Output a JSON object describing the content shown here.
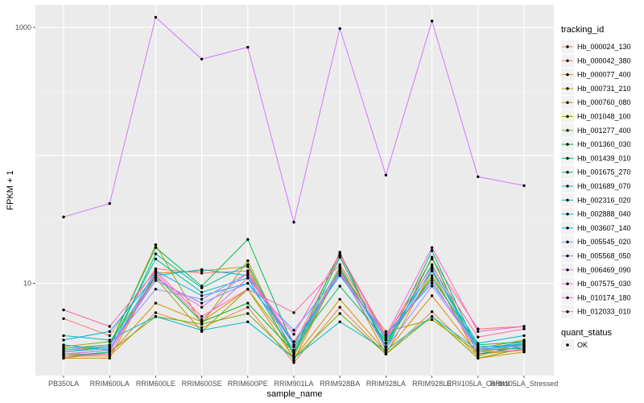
{
  "chart_data": {
    "type": "line",
    "title": "",
    "xlabel": "sample_name",
    "ylabel": "FPKM + 1",
    "y_scale": "log10",
    "ylim": [
      1.9,
      1500
    ],
    "y_ticks": [
      {
        "value": 10,
        "label": "10"
      },
      {
        "value": 1000,
        "label": "1000"
      }
    ],
    "grid": true,
    "legend_position": "right",
    "categories": [
      "PB350LA",
      "RRIM600LA",
      "RRIM600LE",
      "RRIM600SE",
      "RRIM600PE",
      "RRIM901LA",
      "RRIM928BA",
      "RRIM928LA",
      "RRIM928LE",
      "RRII105LA_Control",
      "RRII105LA_Stressed"
    ],
    "legend": {
      "title": "tracking_id",
      "quant_status_title": "quant_status",
      "quant_status_label": "OK"
    },
    "series": [
      {
        "name": "Hb_000024_130",
        "color": "#F8766D",
        "values": [
          5.3,
          3.9,
          13.0,
          12.0,
          12.5,
          3.3,
          16.5,
          3.8,
          15.5,
          4.4,
          4.6
        ]
      },
      {
        "name": "Hb_000042_380",
        "color": "#EE8044",
        "values": [
          2.7,
          2.7,
          5.9,
          4.5,
          6.5,
          2.4,
          6.5,
          2.8,
          6.0,
          2.7,
          3.4
        ]
      },
      {
        "name": "Hb_000077_400",
        "color": "#E08B00",
        "values": [
          2.8,
          2.8,
          7.0,
          5.0,
          9.0,
          2.6,
          7.5,
          2.9,
          8.0,
          2.8,
          3.0
        ]
      },
      {
        "name": "Hb_000731_210",
        "color": "#CF9400",
        "values": [
          2.6,
          2.6,
          12.0,
          12.5,
          13.5,
          2.5,
          13.0,
          2.8,
          12.5,
          2.6,
          2.9
        ]
      },
      {
        "name": "Hb_000760_080",
        "color": "#B79F00",
        "values": [
          3.0,
          3.2,
          20.0,
          4.8,
          15.0,
          2.7,
          12.5,
          4.2,
          5.2,
          2.9,
          3.3
        ]
      },
      {
        "name": "Hb_001048_100",
        "color": "#9CA700",
        "values": [
          3.2,
          3.5,
          11.0,
          4.2,
          9.0,
          3.0,
          13.5,
          3.4,
          11.5,
          3.1,
          3.6
        ]
      },
      {
        "name": "Hb_001277_400",
        "color": "#72B000",
        "values": [
          2.6,
          2.9,
          5.5,
          4.8,
          5.8,
          2.6,
          5.8,
          2.8,
          5.5,
          2.6,
          3.1
        ]
      },
      {
        "name": "Hb_001360_030",
        "color": "#00B81F",
        "values": [
          2.8,
          3.0,
          11.5,
          5.0,
          7.0,
          2.9,
          17.5,
          3.0,
          16.0,
          2.8,
          3.2
        ]
      },
      {
        "name": "Hb_001439_010",
        "color": "#00BC59",
        "values": [
          3.1,
          3.3,
          19.0,
          9.5,
          22.0,
          3.2,
          9.5,
          3.6,
          11.0,
          3.3,
          3.5
        ]
      },
      {
        "name": "Hb_001675_270",
        "color": "#00BE84",
        "values": [
          2.7,
          2.9,
          17.0,
          9.2,
          14.0,
          2.8,
          16.0,
          3.2,
          18.0,
          3.0,
          3.4
        ]
      },
      {
        "name": "Hb_001689_070",
        "color": "#00BFA7",
        "values": [
          2.9,
          3.2,
          15.5,
          8.5,
          11.0,
          2.8,
          13.0,
          3.4,
          14.0,
          3.0,
          3.1
        ]
      },
      {
        "name": "Hb_002316_020",
        "color": "#00BCC6",
        "values": [
          3.9,
          3.6,
          5.5,
          4.3,
          5.0,
          2.6,
          5.0,
          3.0,
          5.5,
          3.0,
          3.5
        ]
      },
      {
        "name": "Hb_002888_040",
        "color": "#00B6E0",
        "values": [
          3.6,
          4.2,
          11.5,
          12.8,
          11.5,
          3.3,
          12.0,
          3.7,
          12.5,
          3.4,
          3.9
        ]
      },
      {
        "name": "Hb_003607_140",
        "color": "#00ACF5",
        "values": [
          3.3,
          3.0,
          12.5,
          8.0,
          10.0,
          3.5,
          11.5,
          4.0,
          10.0,
          3.2,
          3.3
        ]
      },
      {
        "name": "Hb_005545_020",
        "color": "#5E9FFF",
        "values": [
          2.9,
          3.1,
          10.5,
          7.0,
          10.0,
          4.3,
          12.0,
          3.2,
          13.0,
          3.0,
          3.3
        ]
      },
      {
        "name": "Hb_005568_050",
        "color": "#A28DFF",
        "values": [
          3.0,
          3.3,
          9.0,
          7.5,
          12.0,
          3.0,
          12.5,
          3.1,
          9.5,
          3.1,
          3.2
        ]
      },
      {
        "name": "Hb_006469_090",
        "color": "#CF78FF",
        "values": [
          33.0,
          42.0,
          1200.0,
          565.0,
          700.0,
          30.0,
          980.0,
          70.0,
          1120.0,
          68.0,
          58.0
        ]
      },
      {
        "name": "Hb_007575_030",
        "color": "#EC69EF",
        "values": [
          2.8,
          3.0,
          11.0,
          6.5,
          12.0,
          3.5,
          12.0,
          3.8,
          10.5,
          2.9,
          3.0
        ]
      },
      {
        "name": "Hb_010174_180",
        "color": "#FB61D7",
        "values": [
          2.7,
          2.8,
          12.0,
          5.2,
          11.0,
          4.0,
          17.0,
          3.9,
          19.0,
          4.2,
          4.6
        ]
      },
      {
        "name": "Hb_012033_010",
        "color": "#FF66A8",
        "values": [
          6.2,
          4.6,
          12.5,
          5.5,
          9.0,
          5.9,
          14.0,
          3.9,
          13.5,
          3.8,
          4.4
        ]
      }
    ]
  }
}
